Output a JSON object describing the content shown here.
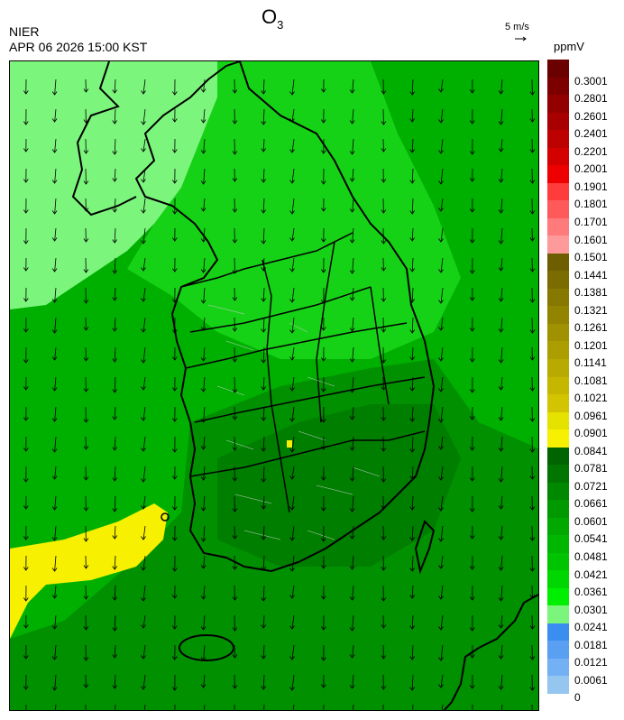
{
  "header": {
    "title_main": "O",
    "title_sub": "3",
    "agency": "NIER",
    "datetime": "APR 06 2026 15:00 KST",
    "wind_ref_label": "5 m/s",
    "unit": "ppmV"
  },
  "legend": {
    "labels": [
      "0.3001",
      "0.2801",
      "0.2601",
      "0.2401",
      "0.2201",
      "0.2001",
      "0.1901",
      "0.1801",
      "0.1701",
      "0.1601",
      "0.1501",
      "0.1441",
      "0.1381",
      "0.1321",
      "0.1261",
      "0.1201",
      "0.1141",
      "0.1081",
      "0.1021",
      "0.0961",
      "0.0901",
      "0.0841",
      "0.0781",
      "0.0721",
      "0.0661",
      "0.0601",
      "0.0541",
      "0.0481",
      "0.0421",
      "0.0361",
      "0.0301",
      "0.0241",
      "0.0181",
      "0.0121",
      "0.0061",
      "0"
    ],
    "colors": [
      "#6a0000",
      "#7c0000",
      "#930000",
      "#a80000",
      "#bd0000",
      "#d40000",
      "#ee0000",
      "#ff3c3c",
      "#ff5a5a",
      "#ff7a7a",
      "#ff9a9a",
      "#6d5f00",
      "#7a6c00",
      "#867800",
      "#938400",
      "#9f9100",
      "#ac9d00",
      "#b8aa00",
      "#c5b700",
      "#d2c400",
      "#e6e200",
      "#f7f000",
      "#006400",
      "#007500",
      "#008800",
      "#009a00",
      "#00a800",
      "#00b600",
      "#00c400",
      "#00d600",
      "#00ef00",
      "#7cf57c",
      "#3a8ef0",
      "#5aa0f2",
      "#74b0f4",
      "#94c6f0"
    ]
  },
  "map": {
    "background_green": "#00a800",
    "light_green": "#7cf57c",
    "mid_green": "#00c800",
    "dark_green": "#008c00",
    "yellow": "#f7f000",
    "coast_color": "#000000",
    "wind_direction": "north-to-south"
  }
}
